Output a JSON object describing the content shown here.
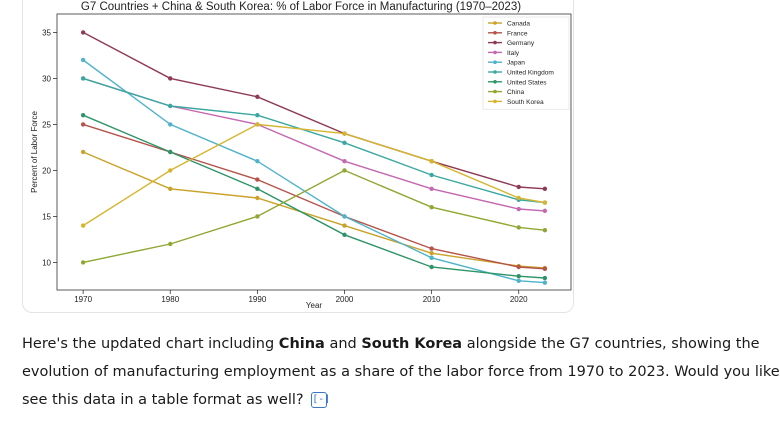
{
  "chart_data": {
    "type": "line",
    "title": "G7 Countries + China & South Korea: % of Labor Force in Manufacturing (1970–2023)",
    "xlabel": "Year",
    "ylabel": "Percent of Labor Force",
    "xlim": [
      1967,
      2026
    ],
    "ylim": [
      7,
      37
    ],
    "xticks": [
      1970,
      1980,
      1990,
      2000,
      2010,
      2020
    ],
    "yticks": [
      10,
      15,
      20,
      25,
      30,
      35
    ],
    "grid": false,
    "legend": "top-right",
    "x": [
      1970,
      1980,
      1990,
      2000,
      2010,
      2020,
      2023
    ],
    "series": [
      {
        "name": "Canada",
        "color": "#c9a227",
        "values": [
          22,
          18,
          17,
          14,
          11,
          9.6,
          9.4
        ]
      },
      {
        "name": "France",
        "color": "#b5524a",
        "values": [
          25,
          22,
          19,
          15,
          11.5,
          9.5,
          9.3
        ]
      },
      {
        "name": "Germany",
        "color": "#8e3a55",
        "values": [
          35,
          30,
          28,
          24,
          21,
          18.2,
          18
        ]
      },
      {
        "name": "Italy",
        "color": "#c468b0",
        "values": [
          30,
          27,
          25,
          21,
          18,
          15.8,
          15.6
        ]
      },
      {
        "name": "Japan",
        "color": "#4fb3c9",
        "values": [
          32,
          25,
          21,
          15,
          10.5,
          8,
          7.8
        ]
      },
      {
        "name": "United Kingdom",
        "color": "#3aa8a0",
        "values": [
          30,
          27,
          26,
          23,
          19.5,
          16.8,
          16.5
        ]
      },
      {
        "name": "United States",
        "color": "#2e9468",
        "values": [
          26,
          22,
          18,
          13,
          9.5,
          8.5,
          8.3
        ]
      },
      {
        "name": "China",
        "color": "#8fa832",
        "values": [
          10,
          12,
          15,
          20,
          16,
          13.8,
          13.5
        ]
      },
      {
        "name": "South Korea",
        "color": "#d6b52e",
        "values": [
          14,
          20,
          25,
          24,
          21,
          17,
          16.5
        ]
      }
    ]
  },
  "message": {
    "part1": "Here's the updated chart including ",
    "china": "China",
    "part2": " and ",
    "korea": "South Korea",
    "part3": " alongside the G7 countries, showing the",
    "line2": "evolution of manufacturing employment as a share of the labor force from 1970 to 2023. Would you like",
    "line3": "see this data in a table format as well?",
    "source_icon": "[-]"
  }
}
